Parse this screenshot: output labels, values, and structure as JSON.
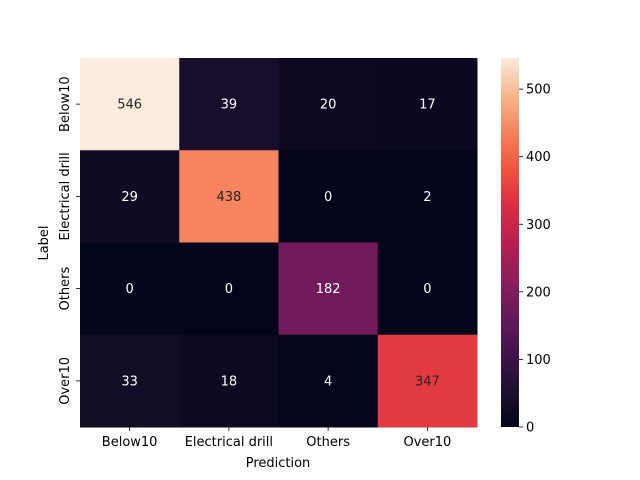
{
  "chart_data": {
    "type": "heatmap",
    "title": "",
    "xlabel": "Prediction",
    "ylabel": "Label",
    "x_categories": [
      "Below10",
      "Electrical drill",
      "Others",
      "Over10"
    ],
    "y_categories": [
      "Below10",
      "Electrical drill",
      "Others",
      "Over10"
    ],
    "values": [
      [
        546,
        39,
        20,
        17
      ],
      [
        29,
        438,
        0,
        2
      ],
      [
        0,
        0,
        182,
        0
      ],
      [
        33,
        18,
        4,
        347
      ]
    ],
    "colorbar": {
      "min": 0,
      "max": 546,
      "ticks": [
        0,
        100,
        200,
        300,
        400,
        500
      ],
      "colormap": "rocket"
    }
  }
}
